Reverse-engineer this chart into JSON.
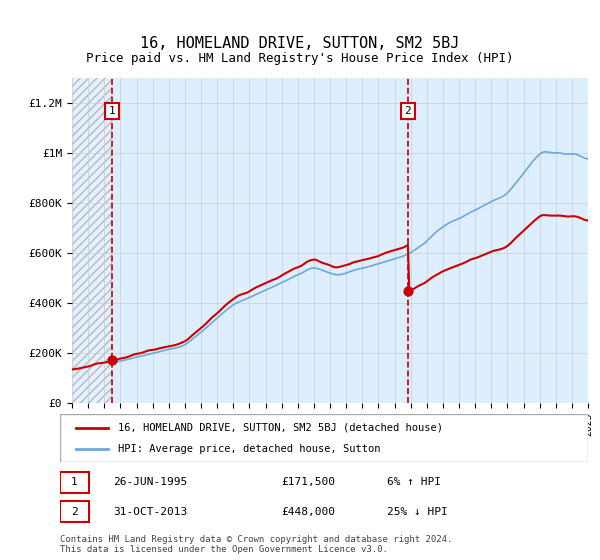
{
  "title": "16, HOMELAND DRIVE, SUTTON, SM2 5BJ",
  "subtitle": "Price paid vs. HM Land Registry's House Price Index (HPI)",
  "ylim": [
    0,
    1300000
  ],
  "yticks": [
    0,
    200000,
    400000,
    600000,
    800000,
    1000000,
    1200000
  ],
  "ytick_labels": [
    "£0",
    "£200K",
    "£400K",
    "£600K",
    "£800K",
    "£1M",
    "£1.2M"
  ],
  "x_start_year": 1993,
  "x_end_year": 2025,
  "sale1_date": 1995.48,
  "sale1_price": 171500,
  "sale2_date": 2013.83,
  "sale2_price": 448000,
  "hpi_color": "#6fa8dc",
  "price_color": "#cc0000",
  "hatch_color": "#cccccc",
  "vline_color": "#cc0000",
  "grid_color": "#cccccc",
  "legend_label1": "16, HOMELAND DRIVE, SUTTON, SM2 5BJ (detached house)",
  "legend_label2": "HPI: Average price, detached house, Sutton",
  "note1_num": "1",
  "note1_date": "26-JUN-1995",
  "note1_price": "£171,500",
  "note1_hpi": "6% ↑ HPI",
  "note2_num": "2",
  "note2_date": "31-OCT-2013",
  "note2_price": "£448,000",
  "note2_hpi": "25% ↓ HPI",
  "footer": "Contains HM Land Registry data © Crown copyright and database right 2024.\nThis data is licensed under the Open Government Licence v3.0.",
  "title_fontsize": 11,
  "subtitle_fontsize": 9
}
